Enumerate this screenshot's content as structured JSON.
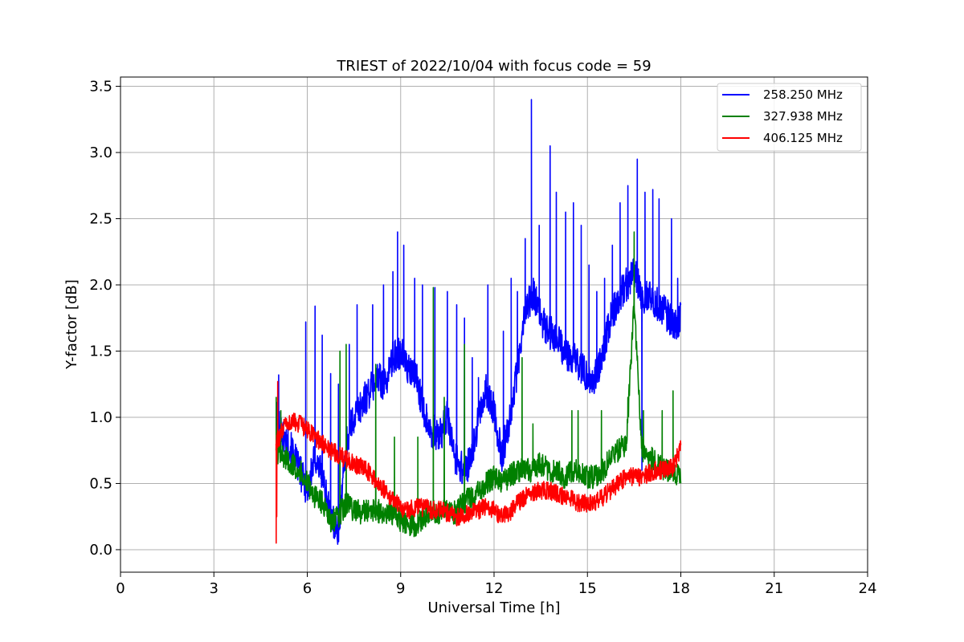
{
  "chart_data": {
    "type": "line",
    "title": "TRIEST of 2022/10/04 with focus code = 59",
    "xlabel": "Universal Time [h]",
    "ylabel": "Y-factor [dB]",
    "xlim": [
      0,
      24
    ],
    "ylim": [
      -0.17,
      3.57
    ],
    "xticks": [
      0,
      3,
      6,
      9,
      12,
      15,
      18,
      21,
      24
    ],
    "yticks": [
      0.0,
      0.5,
      1.0,
      1.5,
      2.0,
      2.5,
      3.0,
      3.5
    ],
    "ytick_labels": [
      "0.0",
      "0.5",
      "1.0",
      "1.5",
      "2.0",
      "2.5",
      "3.0",
      "3.5"
    ],
    "grid": true,
    "legend_position": "top-right",
    "series": [
      {
        "name": "258.250 MHz",
        "color": "#0000ff",
        "x": [
          5.0,
          5.25,
          5.5,
          5.75,
          6.0,
          6.25,
          6.5,
          6.75,
          7.0,
          7.25,
          7.5,
          7.75,
          8.0,
          8.25,
          8.5,
          8.75,
          9.0,
          9.25,
          9.5,
          9.75,
          10.0,
          10.25,
          10.5,
          10.75,
          11.0,
          11.25,
          11.5,
          11.75,
          12.0,
          12.25,
          12.5,
          12.75,
          13.0,
          13.25,
          13.5,
          13.75,
          14.0,
          14.25,
          14.5,
          14.75,
          15.0,
          15.25,
          15.5,
          15.75,
          16.0,
          16.25,
          16.5,
          16.75,
          17.0,
          17.25,
          17.5,
          17.75,
          18.0
        ],
        "y": [
          1.0,
          0.85,
          0.75,
          0.6,
          0.45,
          0.7,
          0.55,
          0.25,
          0.15,
          0.8,
          1.0,
          1.1,
          1.2,
          1.3,
          1.25,
          1.45,
          1.5,
          1.35,
          1.3,
          1.05,
          0.9,
          0.85,
          1.0,
          0.7,
          0.6,
          0.65,
          1.0,
          1.2,
          1.05,
          0.7,
          1.0,
          1.35,
          1.8,
          1.95,
          1.75,
          1.65,
          1.6,
          1.5,
          1.45,
          1.4,
          1.3,
          1.3,
          1.5,
          1.75,
          1.9,
          2.0,
          2.1,
          1.9,
          1.95,
          1.85,
          1.8,
          1.7,
          1.75
        ],
        "noise": 0.13,
        "spikes": [
          [
            5.08,
            1.32
          ],
          [
            5.95,
            1.72
          ],
          [
            6.25,
            1.84
          ],
          [
            6.48,
            1.62
          ],
          [
            6.75,
            1.33
          ],
          [
            7.0,
            1.25
          ],
          [
            7.35,
            1.55
          ],
          [
            7.6,
            1.85
          ],
          [
            8.1,
            1.85
          ],
          [
            8.45,
            2.0
          ],
          [
            8.75,
            2.1
          ],
          [
            8.9,
            2.4
          ],
          [
            9.1,
            2.3
          ],
          [
            9.45,
            2.05
          ],
          [
            9.7,
            2.0
          ],
          [
            10.1,
            1.98
          ],
          [
            10.5,
            1.95
          ],
          [
            10.8,
            1.85
          ],
          [
            11.05,
            1.75
          ],
          [
            11.3,
            1.45
          ],
          [
            11.5,
            1.3
          ],
          [
            11.8,
            2.0
          ],
          [
            12.3,
            1.65
          ],
          [
            12.55,
            2.05
          ],
          [
            12.75,
            1.95
          ],
          [
            13.0,
            2.35
          ],
          [
            13.2,
            3.4
          ],
          [
            13.45,
            2.45
          ],
          [
            13.8,
            3.05
          ],
          [
            14.0,
            2.7
          ],
          [
            14.3,
            2.55
          ],
          [
            14.55,
            2.62
          ],
          [
            14.8,
            2.45
          ],
          [
            15.05,
            2.15
          ],
          [
            15.3,
            1.95
          ],
          [
            15.55,
            2.05
          ],
          [
            15.8,
            2.3
          ],
          [
            16.05,
            2.62
          ],
          [
            16.3,
            2.75
          ],
          [
            16.6,
            2.95
          ],
          [
            16.85,
            2.7
          ],
          [
            17.1,
            2.72
          ],
          [
            17.3,
            2.65
          ],
          [
            17.7,
            2.5
          ],
          [
            17.9,
            2.05
          ],
          [
            16.75,
            0.6
          ]
        ]
      },
      {
        "name": "327.938 MHz",
        "color": "#008000",
        "x": [
          5.0,
          5.25,
          5.5,
          5.75,
          6.0,
          6.25,
          6.5,
          6.75,
          7.0,
          7.25,
          7.5,
          7.75,
          8.0,
          8.25,
          8.5,
          8.75,
          9.0,
          9.25,
          9.5,
          9.75,
          10.0,
          10.25,
          10.5,
          10.75,
          11.0,
          11.25,
          11.5,
          11.75,
          12.0,
          12.25,
          12.5,
          12.75,
          13.0,
          13.25,
          13.5,
          13.75,
          14.0,
          14.25,
          14.5,
          14.75,
          15.0,
          15.25,
          15.5,
          15.75,
          16.0,
          16.25,
          16.5,
          16.75,
          17.0,
          17.25,
          17.5,
          17.75,
          18.0
        ],
        "y": [
          0.75,
          0.7,
          0.65,
          0.6,
          0.5,
          0.4,
          0.35,
          0.2,
          0.25,
          0.35,
          0.3,
          0.28,
          0.3,
          0.3,
          0.25,
          0.28,
          0.22,
          0.2,
          0.18,
          0.25,
          0.3,
          0.28,
          0.3,
          0.28,
          0.35,
          0.4,
          0.45,
          0.5,
          0.55,
          0.5,
          0.55,
          0.6,
          0.6,
          0.6,
          0.65,
          0.6,
          0.6,
          0.55,
          0.6,
          0.6,
          0.55,
          0.55,
          0.6,
          0.7,
          0.75,
          0.8,
          1.85,
          0.75,
          0.7,
          0.65,
          0.6,
          0.6,
          0.55
        ],
        "noise": 0.09,
        "spikes": [
          [
            5.0,
            1.15
          ],
          [
            5.15,
            1.05
          ],
          [
            7.05,
            1.5
          ],
          [
            7.25,
            1.55
          ],
          [
            8.2,
            1.4
          ],
          [
            8.8,
            0.85
          ],
          [
            9.55,
            0.85
          ],
          [
            10.05,
            1.98
          ],
          [
            10.4,
            1.15
          ],
          [
            11.05,
            1.55
          ],
          [
            12.9,
            1.45
          ],
          [
            13.25,
            0.95
          ],
          [
            14.5,
            1.05
          ],
          [
            14.7,
            1.05
          ],
          [
            15.45,
            1.05
          ],
          [
            16.3,
            1.15
          ],
          [
            16.5,
            2.4
          ],
          [
            16.8,
            1.05
          ],
          [
            17.4,
            1.05
          ],
          [
            17.75,
            1.2
          ]
        ]
      },
      {
        "name": "406.125 MHz",
        "color": "#ff0000",
        "x": [
          5.0,
          5.25,
          5.5,
          5.75,
          6.0,
          6.25,
          6.5,
          6.75,
          7.0,
          7.25,
          7.5,
          7.75,
          8.0,
          8.25,
          8.5,
          8.75,
          9.0,
          9.25,
          9.5,
          9.75,
          10.0,
          10.25,
          10.5,
          10.75,
          11.0,
          11.25,
          11.5,
          11.75,
          12.0,
          12.25,
          12.5,
          12.75,
          13.0,
          13.25,
          13.5,
          13.75,
          14.0,
          14.25,
          14.5,
          14.75,
          15.0,
          15.25,
          15.5,
          15.75,
          16.0,
          16.25,
          16.5,
          16.75,
          17.0,
          17.25,
          17.5,
          17.75,
          18.0
        ],
        "y": [
          0.8,
          0.92,
          0.97,
          0.95,
          0.9,
          0.85,
          0.8,
          0.75,
          0.72,
          0.68,
          0.65,
          0.62,
          0.58,
          0.5,
          0.45,
          0.38,
          0.32,
          0.3,
          0.32,
          0.32,
          0.3,
          0.3,
          0.28,
          0.25,
          0.25,
          0.28,
          0.3,
          0.32,
          0.3,
          0.25,
          0.28,
          0.35,
          0.4,
          0.42,
          0.45,
          0.45,
          0.42,
          0.4,
          0.38,
          0.35,
          0.35,
          0.35,
          0.4,
          0.45,
          0.5,
          0.55,
          0.55,
          0.55,
          0.58,
          0.6,
          0.6,
          0.62,
          0.78
        ],
        "noise": 0.07,
        "spikes": [
          [
            5.0,
            0.05
          ],
          [
            5.05,
            1.27
          ],
          [
            5.02,
            0.25
          ]
        ]
      }
    ]
  }
}
